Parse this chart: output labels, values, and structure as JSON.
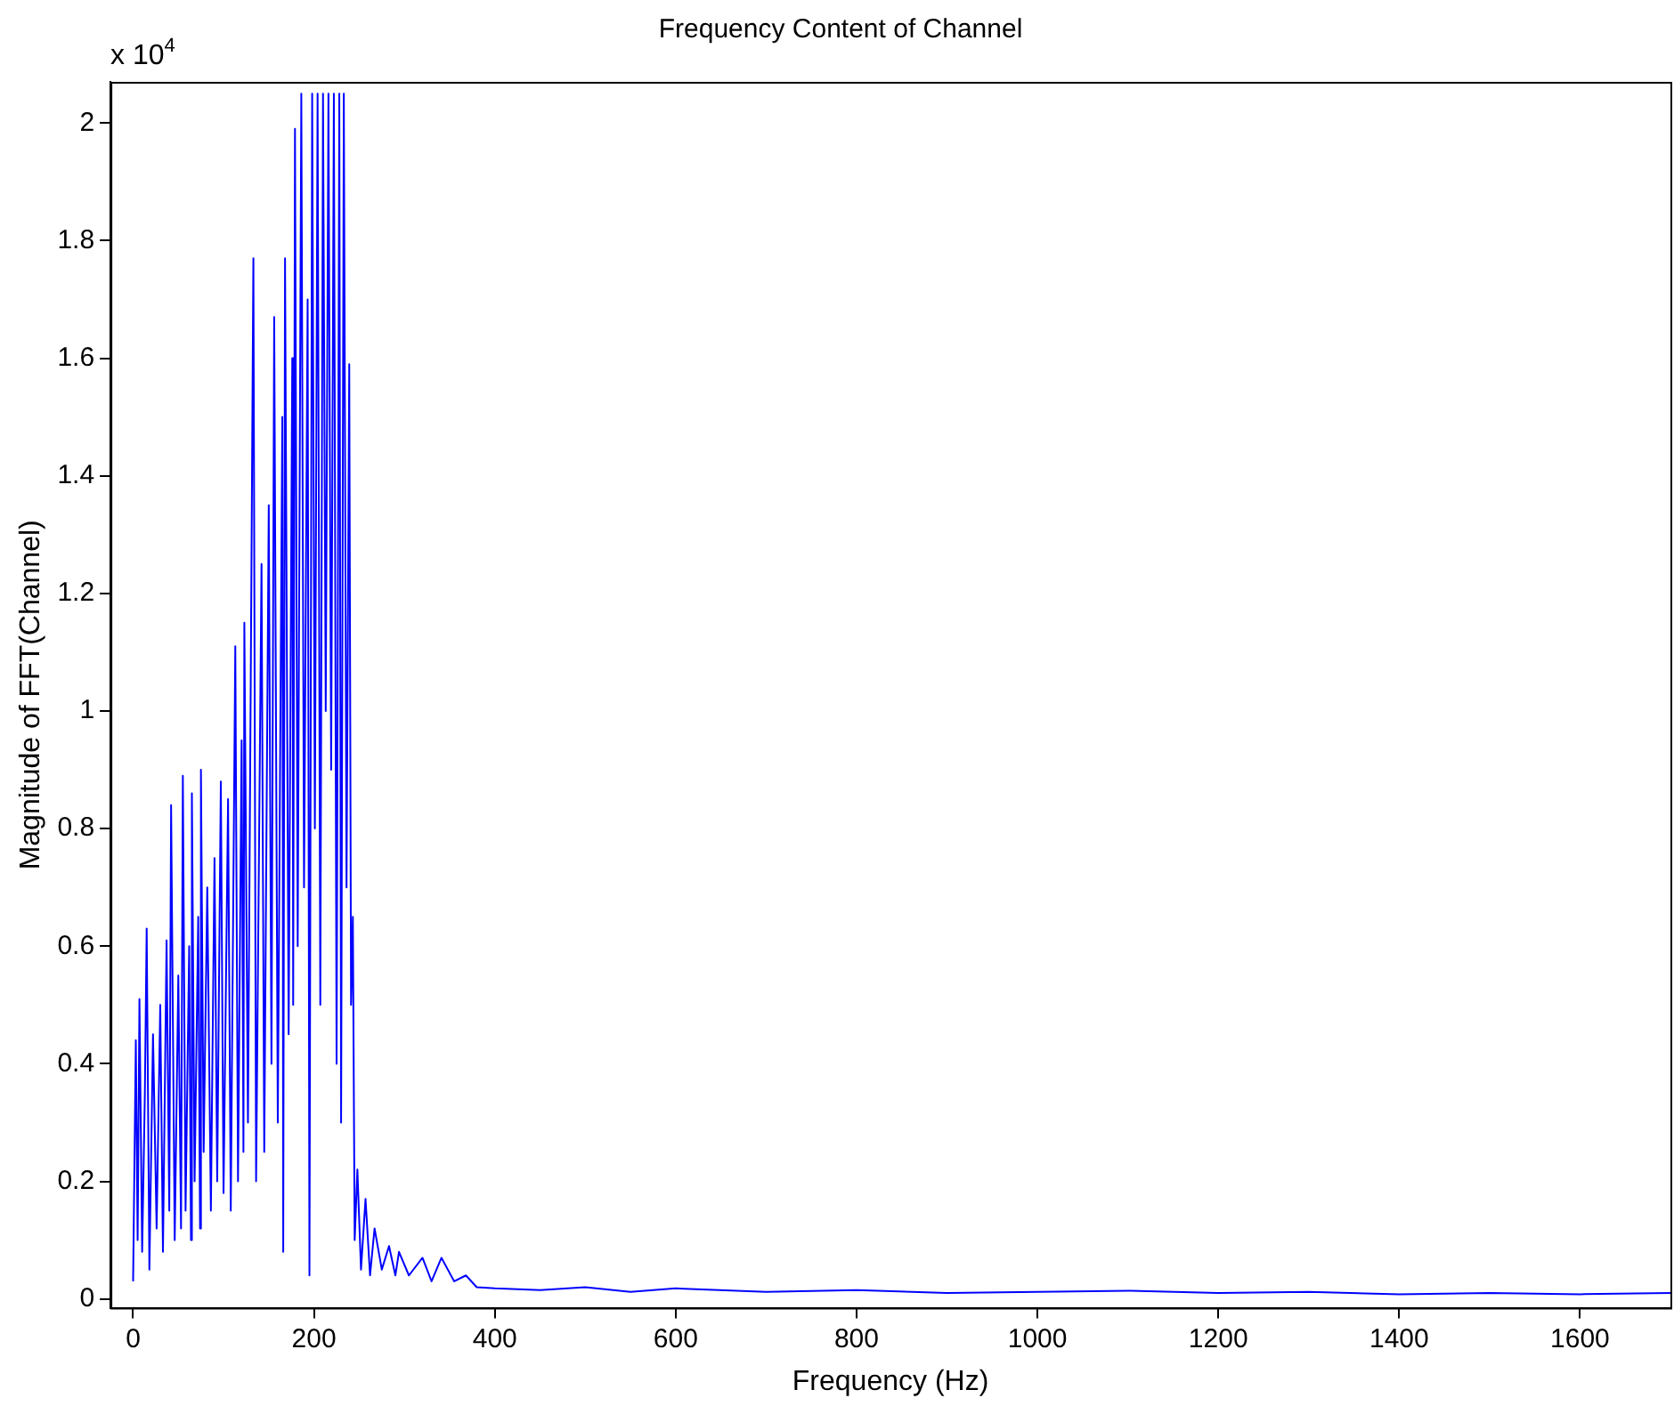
{
  "chart_data": {
    "type": "line",
    "title": "Frequency Content of Channel",
    "xlabel": "Frequency (Hz)",
    "ylabel": "Magnitude of FFT(Channel)",
    "annotations": [
      "x 10$^{4}$"
    ],
    "xlim": [
      -25,
      1700
    ],
    "xticks": [
      0,
      200,
      400,
      600,
      800,
      1000,
      1200,
      1400,
      1600
    ],
    "ylim": [
      -0.015,
      2.07
    ],
    "yticks": [
      0,
      0.2,
      0.4,
      0.6,
      0.8,
      1,
      1.2,
      1.4,
      1.6,
      1.8,
      2
    ],
    "grid": false,
    "legend": false,
    "marker": "none",
    "line_style": "solid",
    "series": [
      {
        "color": "#0000ff",
        "x": [
          0,
          3,
          5,
          7,
          10,
          13,
          15,
          18,
          22,
          26,
          30,
          33,
          37,
          40,
          42,
          46,
          50,
          53,
          55,
          58,
          62,
          64,
          65,
          68,
          72,
          74,
          75,
          78,
          82,
          86,
          90,
          93,
          97,
          100,
          105,
          108,
          113,
          116,
          120,
          122,
          123,
          127,
          133,
          136,
          142,
          145,
          150,
          153,
          156,
          160,
          165,
          166,
          168,
          172,
          176,
          177,
          179,
          182,
          186,
          189,
          193,
          195,
          198,
          201,
          204,
          207,
          210,
          213,
          216,
          219,
          222,
          225,
          228,
          230,
          233,
          236,
          239,
          241,
          243,
          245,
          248,
          252,
          257,
          262,
          267,
          275,
          283,
          290,
          294,
          305,
          320,
          330,
          341,
          355,
          368,
          380,
          400,
          450,
          500,
          550,
          600,
          700,
          800,
          900,
          1000,
          1100,
          1200,
          1300,
          1400,
          1500,
          1600,
          1700
        ],
        "values": [
          0.03,
          0.44,
          0.1,
          0.51,
          0.08,
          0.35,
          0.63,
          0.05,
          0.45,
          0.12,
          0.5,
          0.08,
          0.61,
          0.15,
          0.84,
          0.1,
          0.55,
          0.12,
          0.89,
          0.15,
          0.6,
          0.1,
          0.86,
          0.2,
          0.65,
          0.12,
          0.9,
          0.25,
          0.7,
          0.15,
          0.75,
          0.2,
          0.88,
          0.18,
          0.85,
          0.15,
          1.11,
          0.2,
          0.95,
          0.25,
          1.15,
          0.3,
          1.77,
          0.2,
          1.25,
          0.25,
          1.35,
          0.4,
          1.67,
          0.3,
          1.5,
          0.08,
          1.77,
          0.45,
          1.6,
          0.5,
          1.99,
          0.6,
          2.05,
          0.7,
          1.7,
          0.04,
          2.05,
          0.8,
          2.05,
          0.5,
          2.05,
          1.0,
          2.05,
          0.9,
          2.05,
          0.4,
          2.05,
          0.3,
          2.05,
          0.7,
          1.59,
          0.5,
          0.65,
          0.1,
          0.22,
          0.05,
          0.17,
          0.04,
          0.12,
          0.05,
          0.09,
          0.04,
          0.08,
          0.04,
          0.07,
          0.03,
          0.07,
          0.03,
          0.04,
          0.02,
          0.018,
          0.015,
          0.02,
          0.012,
          0.018,
          0.012,
          0.015,
          0.01,
          0.012,
          0.014,
          0.01,
          0.012,
          0.008,
          0.01,
          0.008,
          0.01
        ]
      }
    ]
  }
}
